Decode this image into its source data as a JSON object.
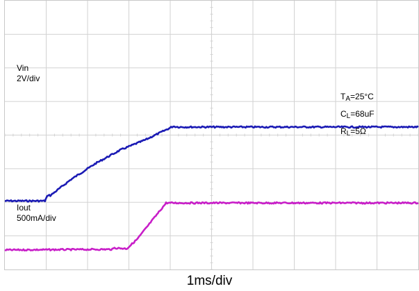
{
  "chart_data": {
    "type": "line",
    "title": "",
    "xlabel": "1ms/div",
    "grid": true,
    "x_unit": "ms",
    "x_range": [
      0,
      10
    ],
    "divisions": {
      "x": 10,
      "y": 8
    },
    "series": [
      {
        "name": "Vin",
        "scale": "2V/div",
        "color": "#1a1ab4",
        "points_div": [
          [
            0.0,
            2.04
          ],
          [
            0.97,
            2.04
          ],
          [
            1.0,
            2.12
          ],
          [
            1.05,
            2.22
          ],
          [
            1.1,
            2.2
          ],
          [
            1.6,
            2.68
          ],
          [
            2.2,
            3.16
          ],
          [
            2.8,
            3.56
          ],
          [
            3.4,
            3.86
          ],
          [
            4.07,
            4.26
          ],
          [
            4.2,
            4.24
          ],
          [
            10.0,
            4.24
          ]
        ]
      },
      {
        "name": "Iout",
        "scale": "500mA/div",
        "color": "#c81ec8",
        "points_div": [
          [
            0.0,
            0.58
          ],
          [
            2.6,
            0.6
          ],
          [
            2.65,
            0.64
          ],
          [
            2.95,
            0.62
          ],
          [
            3.2,
            0.9
          ],
          [
            3.9,
            1.98
          ],
          [
            10.0,
            1.98
          ]
        ]
      }
    ],
    "labels": {
      "vin": {
        "name": "Vin",
        "scale": "2V/div"
      },
      "iout": {
        "name": "Iout",
        "scale": "500mA/div"
      }
    },
    "conditions": [
      {
        "main": "T",
        "sub": "A",
        "rest": "=25°C"
      },
      {
        "main": "C",
        "sub": "L",
        "rest": "=68uF"
      },
      {
        "main": "R",
        "sub": "L",
        "rest": "=5Ω"
      }
    ]
  }
}
